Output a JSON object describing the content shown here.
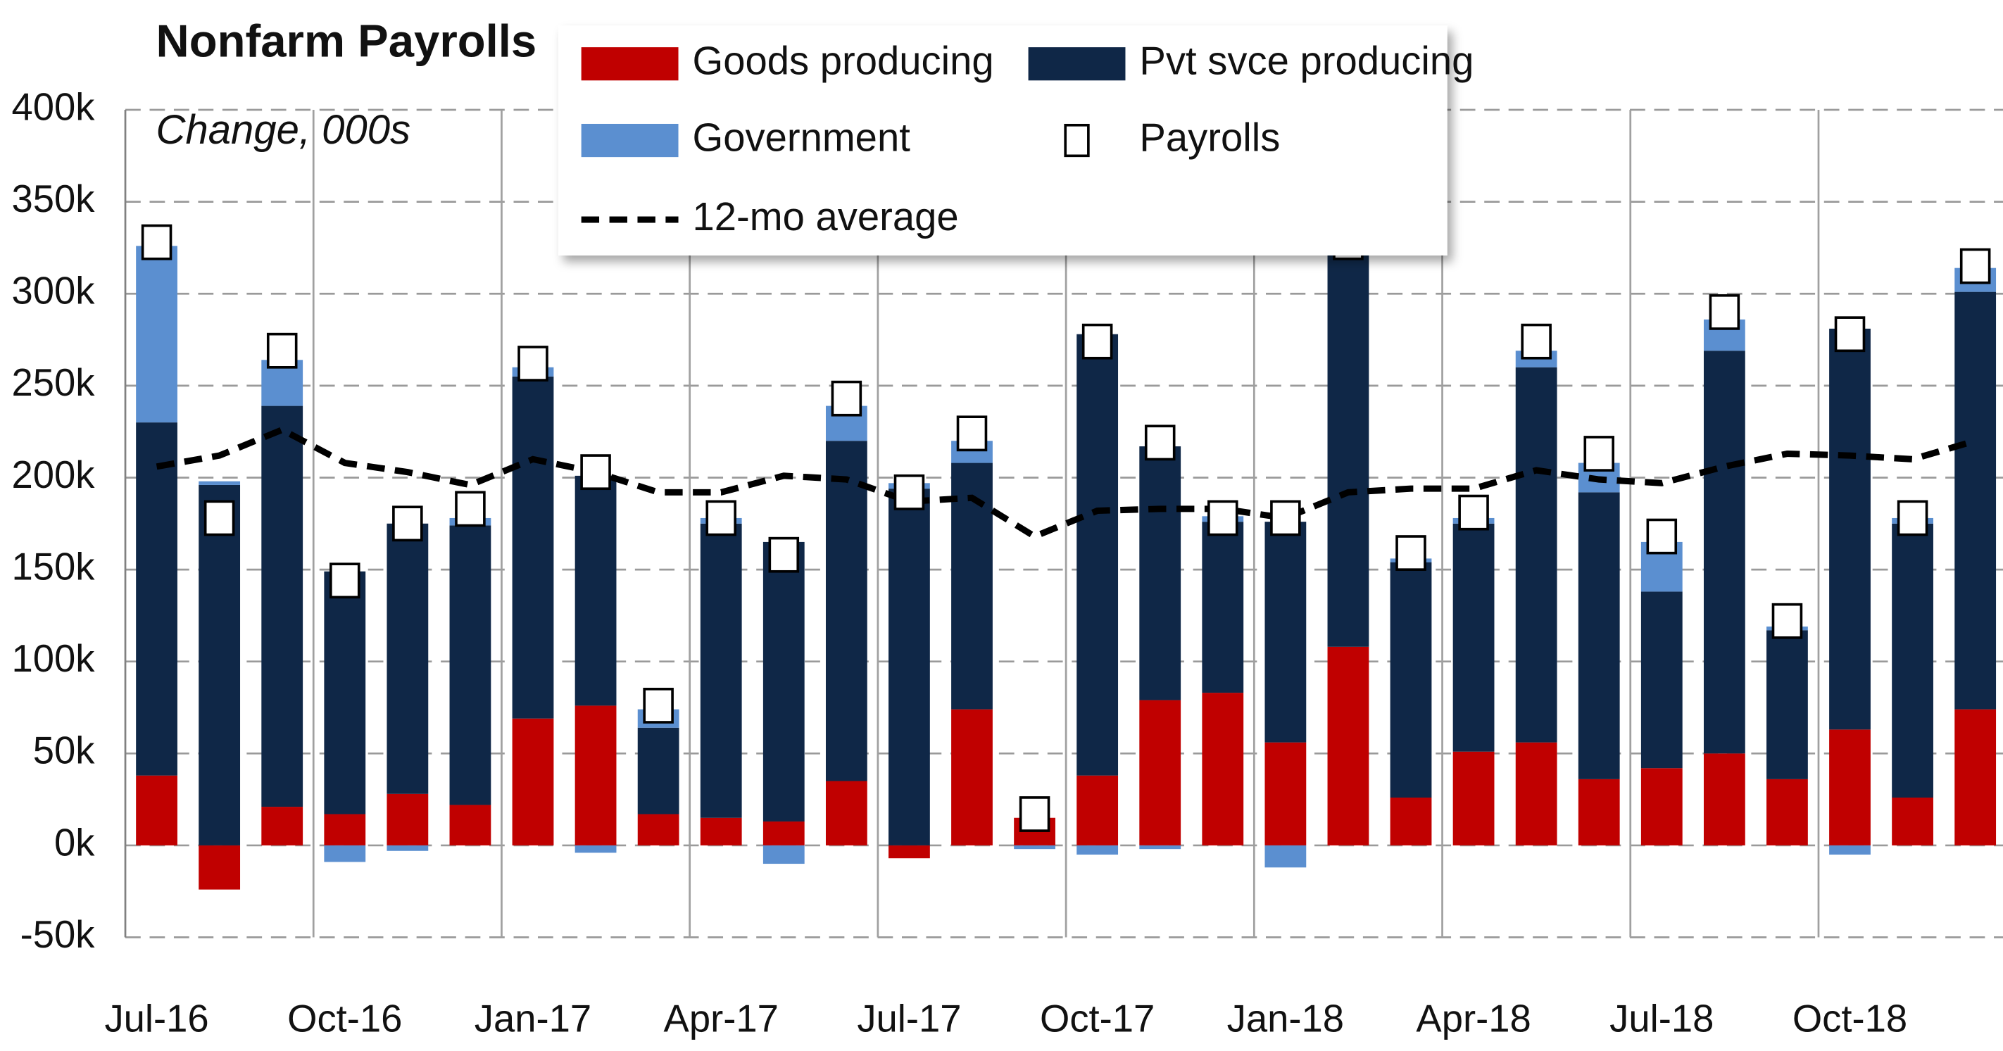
{
  "chart_data": {
    "type": "bar",
    "title": "Nonfarm Payrolls",
    "subtitle": "Change, 000s",
    "categories": [
      "Jul-16",
      null,
      null,
      "Oct-16",
      null,
      null,
      "Jan-17",
      null,
      null,
      "Apr-17",
      null,
      null,
      "Jul-17",
      null,
      null,
      "Oct-17",
      null,
      null,
      "Jan-18",
      null,
      null,
      "Apr-18",
      null,
      null,
      "Jul-18",
      null,
      null,
      "Oct-18",
      null,
      null
    ],
    "series": [
      {
        "name": "Goods producing",
        "type": "bar",
        "color": "#c00000",
        "values": [
          38,
          -24,
          21,
          17,
          28,
          22,
          69,
          76,
          17,
          15,
          13,
          35,
          -7,
          74,
          15,
          38,
          79,
          83,
          56,
          108,
          26,
          51,
          56,
          36,
          42,
          50,
          36,
          63,
          26,
          74
        ]
      },
      {
        "name": "Pvt svce producing",
        "type": "bar",
        "color": "#0f2747",
        "values": [
          192,
          196,
          218,
          132,
          147,
          152,
          186,
          125,
          47,
          160,
          152,
          185,
          194,
          134,
          0,
          240,
          138,
          93,
          120,
          216,
          128,
          124,
          204,
          156,
          96,
          219,
          81,
          218,
          149,
          227
        ]
      },
      {
        "name": "Government",
        "type": "bar",
        "color": "#5b8fd0",
        "values": [
          96,
          2,
          25,
          -9,
          -3,
          4,
          5,
          -4,
          10,
          3,
          -10,
          19,
          3,
          12,
          -2,
          -5,
          -2,
          3,
          -12,
          4,
          2,
          3,
          9,
          16,
          27,
          17,
          2,
          -5,
          3,
          13
        ]
      },
      {
        "name": "Payrolls",
        "type": "marker",
        "color": "#ffffff",
        "values": [
          328,
          178,
          269,
          144,
          175,
          183,
          262,
          203,
          76,
          178,
          158,
          243,
          192,
          224,
          17,
          274,
          219,
          178,
          178,
          328,
          159,
          181,
          274,
          213,
          168,
          290,
          122,
          278,
          178,
          315
        ]
      },
      {
        "name": "12-mo average",
        "type": "line",
        "color": "#000000",
        "values": [
          206,
          212,
          226,
          208,
          203,
          196,
          210,
          203,
          192,
          192,
          201,
          199,
          187,
          189,
          168,
          182,
          183,
          183,
          178,
          192,
          194,
          194,
          204,
          199,
          197,
          206,
          213,
          212,
          210,
          220
        ]
      }
    ],
    "ylim": [
      -50,
      400
    ],
    "yticks": [
      {
        "value": -50,
        "label": "-50k"
      },
      {
        "value": 0,
        "label": "0k"
      },
      {
        "value": 50,
        "label": "50k"
      },
      {
        "value": 100,
        "label": "100k"
      },
      {
        "value": 150,
        "label": "150k"
      },
      {
        "value": 200,
        "label": "200k"
      },
      {
        "value": 250,
        "label": "250k"
      },
      {
        "value": 300,
        "label": "300k"
      },
      {
        "value": 350,
        "label": "350k"
      },
      {
        "value": 400,
        "label": "400k"
      }
    ],
    "grid": true,
    "legend": "top"
  }
}
